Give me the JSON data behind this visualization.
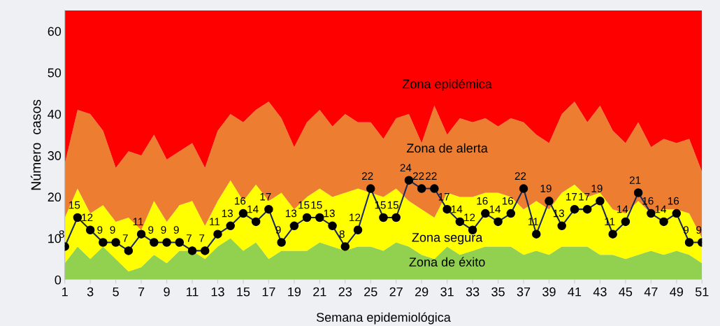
{
  "chart_data": {
    "type": "area",
    "stacked": true,
    "xlabel": "Semana epidemiológica",
    "ylabel": "Número  casos",
    "x": [
      1,
      2,
      3,
      4,
      5,
      6,
      7,
      8,
      9,
      10,
      11,
      12,
      13,
      14,
      15,
      16,
      17,
      18,
      19,
      20,
      21,
      22,
      23,
      24,
      25,
      26,
      27,
      28,
      29,
      30,
      31,
      32,
      33,
      34,
      35,
      36,
      37,
      38,
      39,
      40,
      41,
      42,
      43,
      44,
      45,
      46,
      47,
      48,
      49,
      50,
      51
    ],
    "xlim": [
      1,
      51
    ],
    "xticks": [
      1,
      3,
      5,
      7,
      9,
      11,
      13,
      15,
      17,
      19,
      21,
      23,
      25,
      27,
      29,
      31,
      33,
      35,
      37,
      39,
      41,
      43,
      45,
      47,
      49,
      51
    ],
    "ylim": [
      0,
      65
    ],
    "yticks": [
      0,
      10,
      20,
      30,
      40,
      50,
      60
    ],
    "grid": false,
    "legend": false,
    "series": [
      {
        "name": "Zona de éxito",
        "color": "#92d050",
        "values": [
          4,
          8,
          5,
          8,
          5,
          2,
          3,
          6,
          4,
          7,
          7,
          5,
          8,
          10,
          7,
          9,
          5,
          7,
          7,
          7,
          9,
          8,
          7,
          8,
          8,
          7,
          9,
          8,
          6,
          5,
          8,
          6,
          7,
          8,
          8,
          8,
          6,
          7,
          6,
          8,
          8,
          8,
          6,
          6,
          5,
          6,
          7,
          6,
          7,
          6,
          4
        ]
      },
      {
        "name": "Zona segura",
        "color": "#ffff00",
        "values": [
          11,
          14,
          11,
          10,
          9,
          13,
          9,
          13,
          10,
          11,
          12,
          8,
          11,
          14,
          12,
          14,
          14,
          14,
          10,
          13,
          13,
          12,
          14,
          14,
          13,
          13,
          13,
          11,
          11,
          10,
          13,
          14,
          13,
          13,
          13,
          12,
          11,
          12,
          11,
          13,
          15,
          12,
          15,
          11,
          11,
          13,
          9,
          11,
          10,
          10,
          6
        ]
      },
      {
        "name": "Zona de alerta",
        "color": "#ed7d31",
        "values": [
          13,
          19,
          24,
          18,
          13,
          16,
          18,
          16,
          15,
          13,
          14,
          14,
          17,
          16,
          19,
          18,
          24,
          18,
          15,
          18,
          19,
          17,
          19,
          16,
          17,
          14,
          17,
          21,
          16,
          27,
          14,
          19,
          18,
          18,
          16,
          19,
          21,
          16,
          16,
          19,
          20,
          18,
          21,
          19,
          17,
          19,
          16,
          17,
          16,
          18,
          16
        ]
      },
      {
        "name": "Zona epidémica",
        "color": "#ff0000",
        "values": [
          37,
          24,
          25,
          29,
          38,
          34,
          35,
          30,
          36,
          34,
          32,
          38,
          29,
          25,
          27,
          24,
          22,
          26,
          33,
          27,
          24,
          28,
          25,
          27,
          27,
          31,
          26,
          25,
          32,
          23,
          30,
          26,
          27,
          26,
          28,
          26,
          27,
          30,
          32,
          25,
          22,
          27,
          23,
          29,
          32,
          27,
          33,
          31,
          32,
          31,
          39
        ]
      },
      {
        "type": "line",
        "color": "#1a2a5e",
        "marker": "circle",
        "data_labels": true,
        "values": [
          8,
          15,
          12,
          9,
          9,
          7,
          11,
          9,
          9,
          9,
          7,
          7,
          11,
          13,
          16,
          14,
          17,
          9,
          13,
          15,
          15,
          13,
          8,
          12,
          22,
          15,
          15,
          24,
          22,
          22,
          17,
          14,
          12,
          16,
          14,
          16,
          22,
          11,
          19,
          13,
          17,
          17,
          19,
          11,
          14,
          21,
          16,
          14,
          16,
          9,
          9
        ]
      }
    ]
  }
}
